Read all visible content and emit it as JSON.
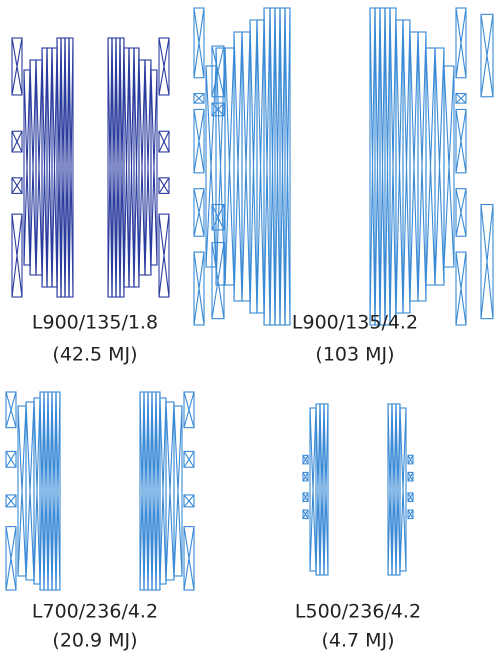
{
  "panels": [
    {
      "name": "L900/135/1.8",
      "energy": "(42.5 MJ)"
    },
    {
      "name": "L900/135/4.2",
      "energy": "(103 MJ)"
    },
    {
      "name": "L700/236/4.2",
      "energy": "(20.9 MJ)"
    },
    {
      "name": "L500/236/4.2",
      "energy": "(4.7 MJ)"
    }
  ]
}
